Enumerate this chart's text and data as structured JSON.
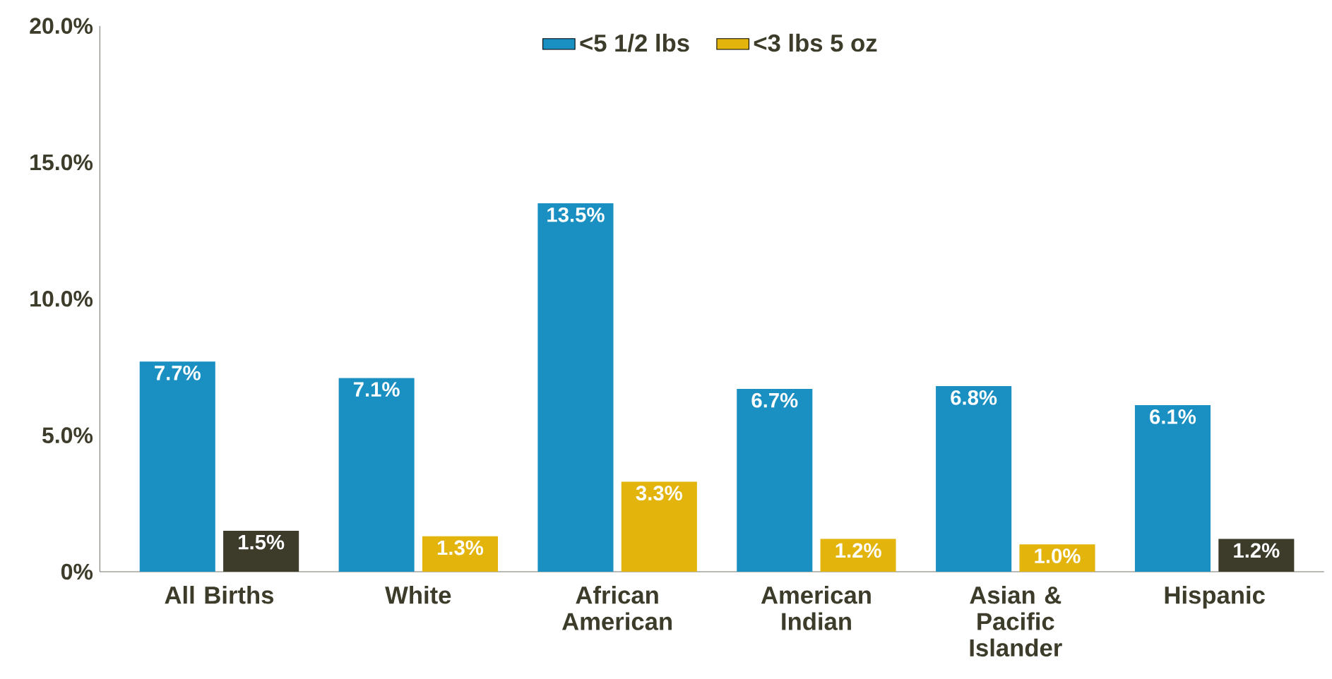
{
  "chart_data": {
    "type": "bar",
    "categories": [
      "All Births",
      "White",
      "African American",
      "American Indian",
      "Asian & Pacific Islander",
      "Hispanic"
    ],
    "series": [
      {
        "name": "<5 1/2 lbs",
        "color": "#1a8fc2",
        "values": [
          7.7,
          7.1,
          13.5,
          6.7,
          6.8,
          6.1
        ],
        "value_labels": [
          "7.7%",
          "7.1%",
          "13.5%",
          "6.7%",
          "6.8%",
          "6.1%"
        ]
      },
      {
        "name": "<3 lbs 5 oz",
        "color": "#e2b40c",
        "colors": [
          "#3d3b2a",
          "#e2b40c",
          "#e2b40c",
          "#e2b40c",
          "#e2b40c",
          "#3d3b2a"
        ],
        "values": [
          1.5,
          1.3,
          3.3,
          1.2,
          1.0,
          1.2
        ],
        "value_labels": [
          "1.5%",
          "1.3%",
          "3.3%",
          "1.2%",
          "1.0%",
          "1.2%"
        ]
      }
    ],
    "ylim": [
      0,
      20
    ],
    "yticks": [
      {
        "value": 0,
        "label": "0%"
      },
      {
        "value": 5,
        "label": "5.0%"
      },
      {
        "value": 10,
        "label": "10.0%"
      },
      {
        "value": 15,
        "label": "15.0%"
      },
      {
        "value": 20,
        "label": "20.0%"
      }
    ],
    "legend": "top",
    "grid": false
  }
}
